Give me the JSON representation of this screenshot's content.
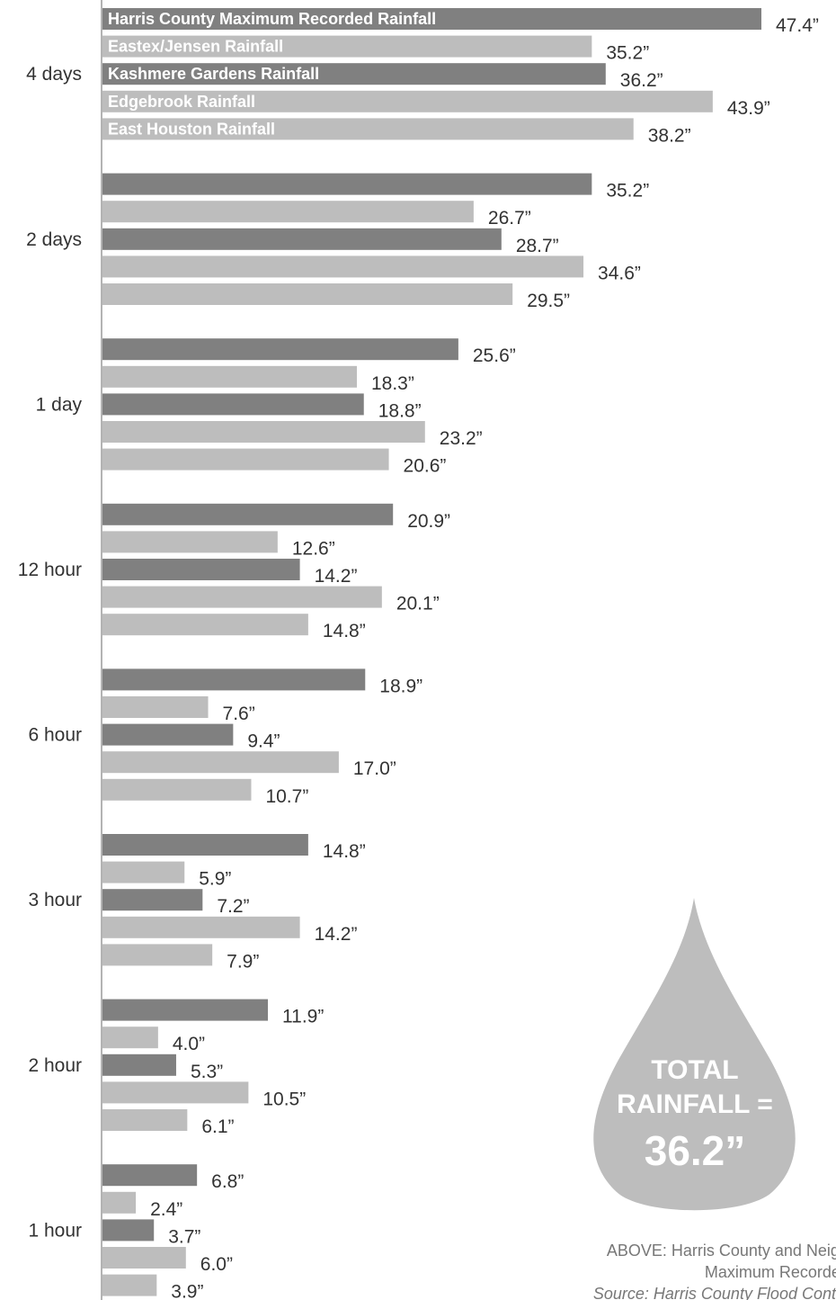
{
  "chart_data": {
    "type": "bar",
    "orientation": "horizontal",
    "categories": [
      "4 days",
      "2 days",
      "1 day",
      "12 hour",
      "6 hour",
      "3 hour",
      "2 hour",
      "1 hour"
    ],
    "series": [
      {
        "name": "Harris County Maximum Recorded Rainfall",
        "color": "#808080",
        "values": [
          47.4,
          35.2,
          25.6,
          20.9,
          18.9,
          14.8,
          11.9,
          6.8
        ]
      },
      {
        "name": "Eastex/Jensen Rainfall",
        "color": "#bdbdbd",
        "values": [
          35.2,
          26.7,
          18.3,
          12.6,
          7.6,
          5.9,
          4.0,
          2.4
        ]
      },
      {
        "name": "Kashmere Gardens Rainfall",
        "color": "#808080",
        "values": [
          36.2,
          28.7,
          18.8,
          14.2,
          9.4,
          7.2,
          5.3,
          3.7
        ]
      },
      {
        "name": "Edgebrook Rainfall",
        "color": "#bdbdbd",
        "values": [
          43.9,
          34.6,
          23.2,
          20.1,
          17.0,
          14.2,
          10.5,
          6.0
        ]
      },
      {
        "name": "East Houston Rainfall",
        "color": "#bdbdbd",
        "values": [
          38.2,
          29.5,
          20.6,
          14.8,
          10.7,
          7.9,
          6.1,
          3.9
        ]
      }
    ],
    "value_suffix": "”",
    "xlim": [
      0,
      47.4
    ],
    "grid": false,
    "legend": "inside bars of first category"
  },
  "callout": {
    "line1": "TOTAL",
    "line2": "RAINFALL =",
    "value": "36.2”",
    "color": "#bdbdbd"
  },
  "caption": {
    "line1": "ABOVE: Harris County and Neighborhood",
    "line2": "Maximum Recorded Rainfall",
    "source": "Source: Harris County Flood Control District"
  }
}
